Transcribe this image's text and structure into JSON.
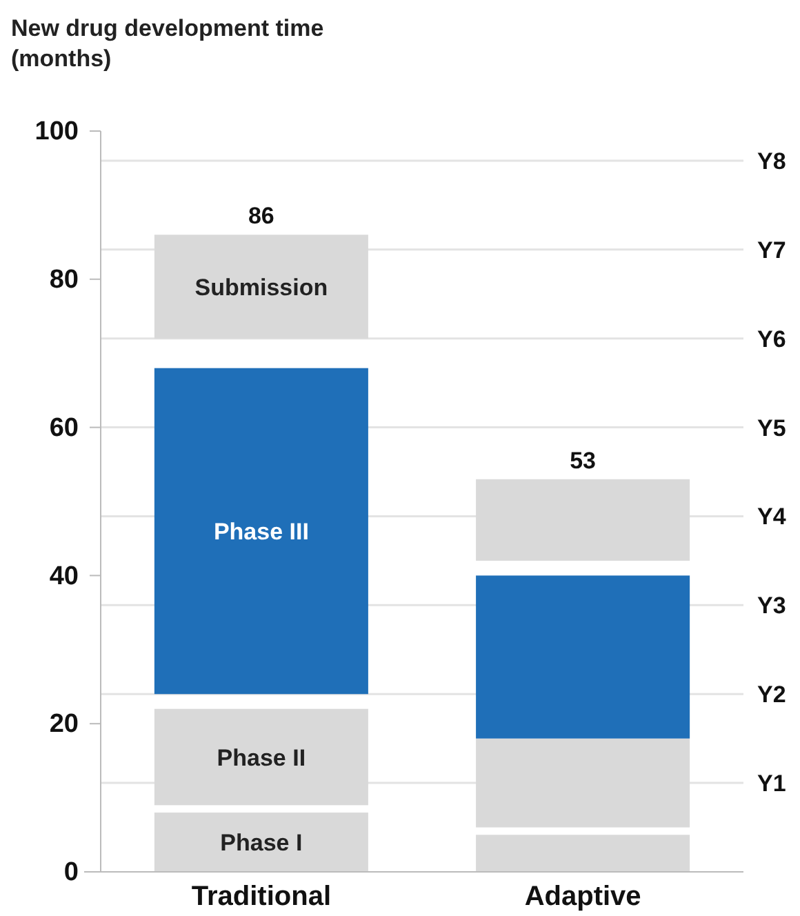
{
  "chart_data": {
    "type": "bar",
    "title": "New drug development time (months)",
    "categories": [
      "Traditional",
      "Adaptive"
    ],
    "series": [
      {
        "name": "Phase I",
        "color": "#d9d9d9",
        "base": [
          0,
          0
        ],
        "values": [
          8,
          5
        ]
      },
      {
        "name": "Phase II",
        "color": "#d9d9d9",
        "base": [
          9,
          6
        ],
        "values": [
          13,
          12
        ]
      },
      {
        "name": "Phase III",
        "color": "#1f6fb8",
        "base": [
          24,
          18
        ],
        "values": [
          44,
          22
        ]
      },
      {
        "name": "Submission",
        "color": "#d9d9d9",
        "base": [
          72,
          42
        ],
        "values": [
          14,
          11
        ]
      }
    ],
    "annotations": [
      {
        "text": "86",
        "x": "Traditional",
        "y": 86
      },
      {
        "text": "53",
        "x": "Adaptive",
        "y": 53
      }
    ],
    "ylim": [
      0,
      100
    ],
    "yticks": [
      0,
      20,
      40,
      60,
      80,
      100
    ],
    "ref_lines": [
      {
        "axis": "y",
        "value": 12,
        "label": "Y1",
        "color": "#e3e3e3"
      },
      {
        "axis": "y",
        "value": 24,
        "label": "Y2",
        "color": "#e3e3e3"
      },
      {
        "axis": "y",
        "value": 36,
        "label": "Y3",
        "color": "#e3e3e3"
      },
      {
        "axis": "y",
        "value": 48,
        "label": "Y4",
        "color": "#e3e3e3"
      },
      {
        "axis": "y",
        "value": 60,
        "label": "Y5",
        "color": "#e3e3e3"
      },
      {
        "axis": "y",
        "value": 72,
        "label": "Y6",
        "color": "#e3e3e3"
      },
      {
        "axis": "y",
        "value": 84,
        "label": "Y7",
        "color": "#e3e3e3"
      },
      {
        "axis": "y",
        "value": 96,
        "label": "Y8",
        "color": "#e3e3e3"
      }
    ]
  }
}
